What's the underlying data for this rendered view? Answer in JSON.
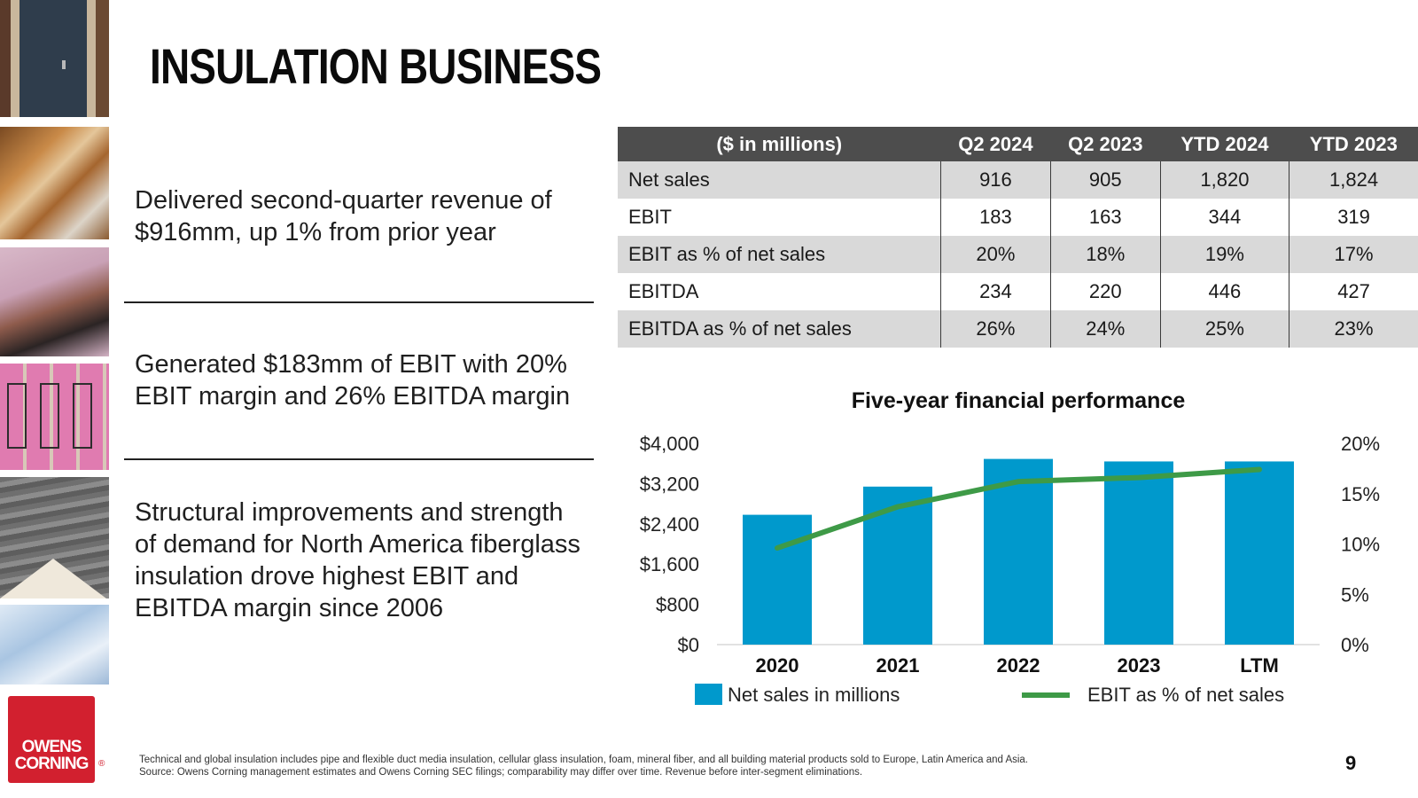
{
  "title": "INSULATION BUSINESS",
  "bullets": [
    "Delivered second-quarter revenue of $916mm, up 1% from prior year",
    "Generated $183mm of EBIT with 20% EBIT margin and 26% EBITDA margin",
    "Structural improvements and strength of demand for North America fiberglass insulation drove highest EBIT and EBITDA margin since 2006"
  ],
  "table": {
    "headers": [
      "($ in millions)",
      "Q2 2024",
      "Q2 2023",
      "YTD 2024",
      "YTD 2023"
    ],
    "rows": [
      {
        "label": "Net sales",
        "values": [
          "916",
          "905",
          "1,820",
          "1,824"
        ]
      },
      {
        "label": "EBIT",
        "values": [
          "183",
          "163",
          "344",
          "319"
        ]
      },
      {
        "label": "EBIT as % of net sales",
        "values": [
          "20%",
          "18%",
          "19%",
          "17%"
        ]
      },
      {
        "label": "EBITDA",
        "values": [
          "234",
          "220",
          "446",
          "427"
        ]
      },
      {
        "label": "EBITDA as % of net sales",
        "values": [
          "26%",
          "24%",
          "25%",
          "23%"
        ]
      }
    ]
  },
  "chart_data": {
    "type": "bar",
    "title": "Five-year financial performance",
    "categories": [
      "2020",
      "2021",
      "2022",
      "2023",
      "LTM"
    ],
    "series": [
      {
        "name": "Net sales in millions",
        "type": "bar",
        "axis": "left",
        "color": "#0099cc",
        "values": [
          2580,
          3140,
          3690,
          3640,
          3640
        ]
      },
      {
        "name": "EBIT as % of net sales",
        "type": "line",
        "axis": "right",
        "color": "#3e9a47",
        "values": [
          9.6,
          13.7,
          16.2,
          16.6,
          17.4
        ]
      }
    ],
    "y_left": {
      "min": 0,
      "max": 4000,
      "ticks": [
        "$0",
        "$800",
        "$1,600",
        "$2,400",
        "$3,200",
        "$4,000"
      ],
      "tick_values": [
        0,
        800,
        1600,
        2400,
        3200,
        4000
      ]
    },
    "y_right": {
      "min": 0,
      "max": 20,
      "ticks": [
        "0%",
        "5%",
        "10%",
        "15%",
        "20%"
      ],
      "tick_values": [
        0,
        5,
        10,
        15,
        20
      ]
    },
    "legend": "bottom",
    "grid": false
  },
  "footnote": {
    "line1": "Technical and global insulation includes pipe and flexible duct media insulation, cellular glass insulation, foam, mineral fiber, and all building material products sold to Europe, Latin America and Asia.",
    "line2": "Source: Owens Corning management estimates and Owens Corning SEC filings; comparability may differ over time. Revenue before inter-segment eliminations."
  },
  "logo": {
    "line1": "OWENS",
    "line2": "CORNING",
    "mark": "®"
  },
  "page_number": "9"
}
